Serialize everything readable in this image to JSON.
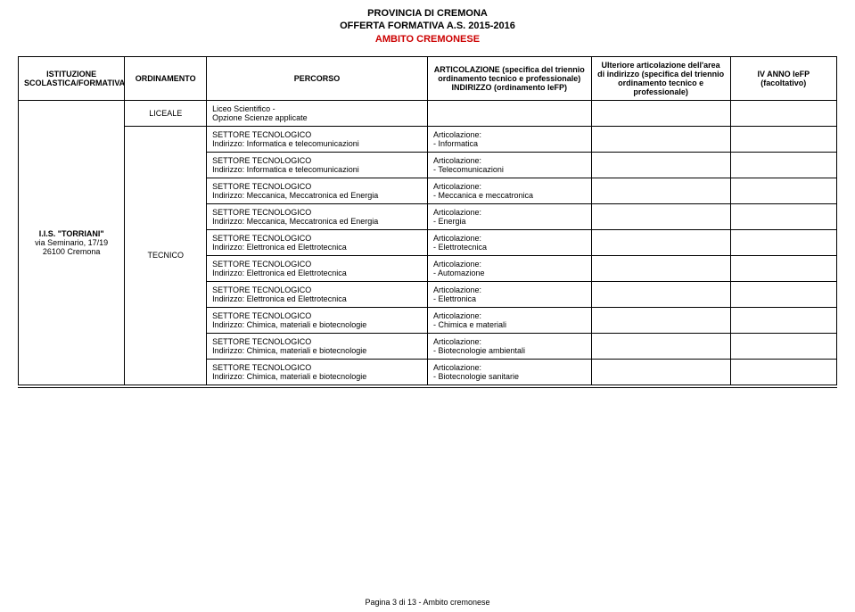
{
  "header": {
    "line1": "PROVINCIA DI CREMONA",
    "line2": "OFFERTA FORMATIVA A.S. 2015-2016",
    "line3": "AMBITO CREMONESE"
  },
  "columns": {
    "istituzione": "ISTITUZIONE SCOLASTICA/FORMATIVA",
    "ordinamento": "ORDINAMENTO",
    "percorso": "PERCORSO",
    "articolazione": "ARTICOLAZIONE (specifica del triennio ordinamento tecnico e professionale) INDIRIZZO (ordinamento IeFP)",
    "ulteriore": "Ulteriore articolazione dell'area di indirizzo (specifica del triennio ordinamento tecnico e professionale)",
    "ivanno": "IV ANNO IeFP (facoltativo)"
  },
  "institution": {
    "name": "I.I.S. \"TORRIANI\"",
    "addr1": "via Seminario, 17/19",
    "addr2": "26100 Cremona"
  },
  "ordinamenti": {
    "liceale": "LICEALE",
    "tecnico": "TECNICO"
  },
  "rows": [
    {
      "percorso_l1": "Liceo Scientifico -",
      "percorso_l2": "Opzione Scienze applicate",
      "art_l1": "",
      "art_l2": ""
    },
    {
      "percorso_l1": "SETTORE TECNOLOGICO",
      "percorso_l2": "Indirizzo: Informatica e telecomunicazioni",
      "art_l1": "Articolazione:",
      "art_l2": "- Informatica"
    },
    {
      "percorso_l1": "SETTORE TECNOLOGICO",
      "percorso_l2": "Indirizzo: Informatica e telecomunicazioni",
      "art_l1": "Articolazione:",
      "art_l2": "- Telecomunicazioni"
    },
    {
      "percorso_l1": "SETTORE TECNOLOGICO",
      "percorso_l2": "Indirizzo: Meccanica, Meccatronica ed Energia",
      "art_l1": "Articolazione:",
      "art_l2": "- Meccanica e meccatronica"
    },
    {
      "percorso_l1": "SETTORE TECNOLOGICO",
      "percorso_l2": "Indirizzo: Meccanica, Meccatronica ed Energia",
      "art_l1": "Articolazione:",
      "art_l2": "- Energia"
    },
    {
      "percorso_l1": "SETTORE TECNOLOGICO",
      "percorso_l2": "Indirizzo: Elettronica ed Elettrotecnica",
      "art_l1": "Articolazione:",
      "art_l2": "- Elettrotecnica"
    },
    {
      "percorso_l1": "SETTORE TECNOLOGICO",
      "percorso_l2": "Indirizzo: Elettronica ed Elettrotecnica",
      "art_l1": "Articolazione:",
      "art_l2": "- Automazione"
    },
    {
      "percorso_l1": "SETTORE TECNOLOGICO",
      "percorso_l2": "Indirizzo: Elettronica ed Elettrotecnica",
      "art_l1": "Articolazione:",
      "art_l2": "- Elettronica"
    },
    {
      "percorso_l1": "SETTORE TECNOLOGICO",
      "percorso_l2": "Indirizzo: Chimica, materiali e biotecnologie",
      "art_l1": "Articolazione:",
      "art_l2": "- Chimica e materiali"
    },
    {
      "percorso_l1": "SETTORE TECNOLOGICO",
      "percorso_l2": "Indirizzo: Chimica, materiali e biotecnologie",
      "art_l1": "Articolazione:",
      "art_l2": "- Biotecnologie ambientali"
    },
    {
      "percorso_l1": "SETTORE TECNOLOGICO",
      "percorso_l2": "Indirizzo: Chimica, materiali e biotecnologie",
      "art_l1": "Articolazione:",
      "art_l2": "- Biotecnologie sanitarie"
    }
  ],
  "footer": "Pagina 3 di 13 - Ambito cremonese"
}
